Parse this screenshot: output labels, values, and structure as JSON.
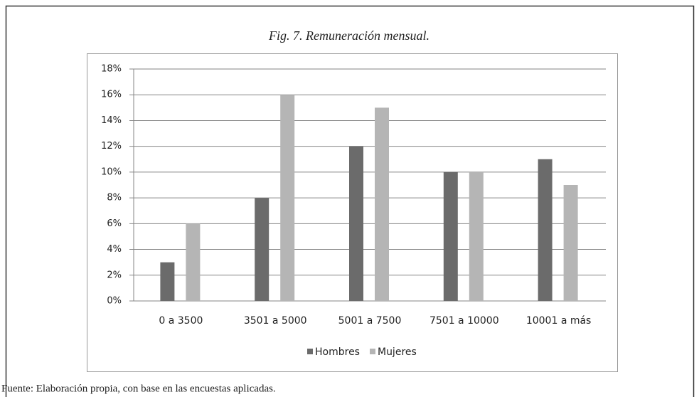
{
  "chart_data": {
    "type": "bar",
    "title": "Fig. 7. Remuneración mensual.",
    "categories": [
      "0 a 3500",
      "3501 a 5000",
      "5001 a 7500",
      "7501 a 10000",
      "10001 a más"
    ],
    "series": [
      {
        "name": "Hombres",
        "color": "#6b6b6b",
        "values": [
          3,
          8,
          12,
          10,
          11
        ]
      },
      {
        "name": "Mujeres",
        "color": "#b5b5b5",
        "values": [
          6,
          16,
          15,
          10,
          9
        ]
      }
    ],
    "ylim": [
      0,
      18
    ],
    "yticks": [
      {
        "value": 0,
        "label": "0%"
      },
      {
        "value": 2,
        "label": "2%"
      },
      {
        "value": 4,
        "label": "4%"
      },
      {
        "value": 6,
        "label": "6%"
      },
      {
        "value": 8,
        "label": "8%"
      },
      {
        "value": 10,
        "label": "10%"
      },
      {
        "value": 12,
        "label": "12%"
      },
      {
        "value": 14,
        "label": "14%"
      },
      {
        "value": 16,
        "label": "16%"
      },
      {
        "value": 18,
        "label": "18%"
      }
    ],
    "grid": true,
    "legend": "bottom",
    "source": "Fuente: Elaboración propia, con base en las encuestas aplicadas."
  }
}
